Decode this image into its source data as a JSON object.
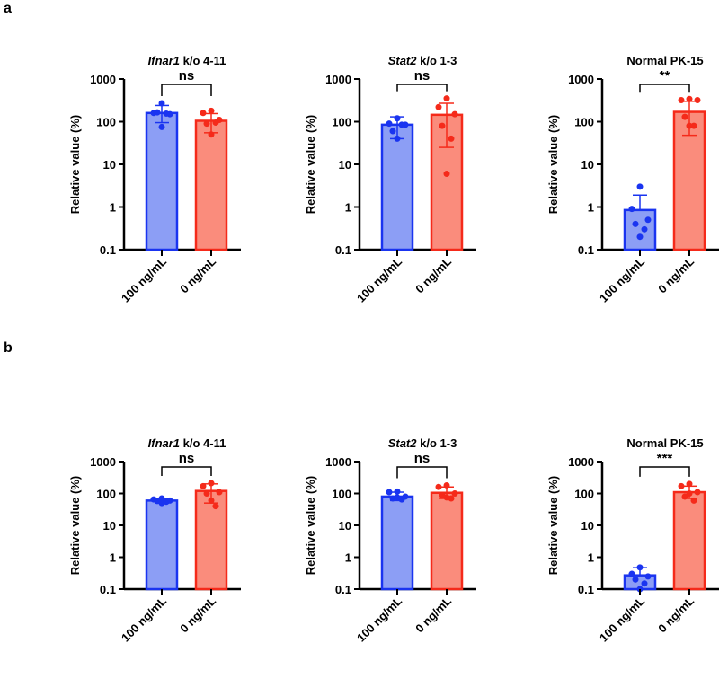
{
  "chart_data": [
    {
      "row": "a",
      "type": "bar",
      "scale": "log",
      "title_italic": "Ifnar1",
      "title_rest": " k/o 4-11",
      "ylabel": "Relative value (%)",
      "yticks": [
        "0.1",
        "1",
        "10",
        "100",
        "1000"
      ],
      "ylim": [
        0.1,
        1000
      ],
      "categories": [
        "100 ng/mL",
        "0 ng/mL"
      ],
      "significance": "ns",
      "series": [
        {
          "name": "100 ng/mL",
          "mean": 160,
          "err": [
            95,
            240
          ],
          "points": [
            270,
            160,
            150,
            165,
            155,
            75
          ]
        },
        {
          "name": "0 ng/mL",
          "mean": 105,
          "err": [
            55,
            155
          ],
          "points": [
            180,
            160,
            110,
            90,
            95,
            50
          ]
        }
      ]
    },
    {
      "row": "a",
      "type": "bar",
      "scale": "log",
      "title_italic": "Stat2",
      "title_rest": " k/o 1-3",
      "ylabel": "Relative value (%)",
      "yticks": [
        "0.1",
        "1",
        "10",
        "100",
        "1000"
      ],
      "ylim": [
        0.1,
        1000
      ],
      "categories": [
        "100 ng/mL",
        "0 ng/mL"
      ],
      "significance": "ns",
      "series": [
        {
          "name": "100 ng/mL",
          "mean": 85,
          "err": [
            40,
            130
          ],
          "points": [
            120,
            90,
            85,
            60,
            85,
            40
          ]
        },
        {
          "name": "0 ng/mL",
          "mean": 145,
          "err": [
            25,
            270
          ],
          "points": [
            350,
            220,
            150,
            80,
            40,
            6
          ]
        }
      ]
    },
    {
      "row": "a",
      "type": "bar",
      "scale": "log",
      "title_italic": "",
      "title_rest": "Normal PK-15",
      "ylabel": "Relative value (%)",
      "yticks": [
        "0.1",
        "1",
        "10",
        "100",
        "1000"
      ],
      "ylim": [
        0.1,
        1000
      ],
      "categories": [
        "100 ng/mL",
        "0 ng/mL"
      ],
      "significance": "**",
      "series": [
        {
          "name": "100 ng/mL",
          "mean": 0.85,
          "err": [
            0.85,
            1.9
          ],
          "points": [
            3,
            0.9,
            0.5,
            0.4,
            0.3,
            0.2
          ]
        },
        {
          "name": "0 ng/mL",
          "mean": 170,
          "err": [
            48,
            300
          ],
          "points": [
            340,
            320,
            320,
            130,
            80,
            80
          ]
        }
      ]
    },
    {
      "row": "b",
      "type": "bar",
      "scale": "log",
      "title_italic": "Ifnar1",
      "title_rest": " k/o 4-11",
      "ylabel": "Relative value (%)",
      "yticks": [
        "0.1",
        "1",
        "10",
        "100",
        "1000"
      ],
      "ylim": [
        0.1,
        1000
      ],
      "categories": [
        "100 ng/mL",
        "0 ng/mL"
      ],
      "significance": "ns",
      "series": [
        {
          "name": "100 ng/mL",
          "mean": 60,
          "err": [
            50,
            70
          ],
          "points": [
            70,
            65,
            60,
            58,
            55,
            50
          ]
        },
        {
          "name": "0 ng/mL",
          "mean": 120,
          "err": [
            50,
            200
          ],
          "points": [
            210,
            170,
            110,
            100,
            40,
            60
          ]
        }
      ]
    },
    {
      "row": "b",
      "type": "bar",
      "scale": "log",
      "title_italic": "Stat2",
      "title_rest": " k/o 1-3",
      "ylabel": "Relative value (%)",
      "yticks": [
        "0.1",
        "1",
        "10",
        "100",
        "1000"
      ],
      "ylim": [
        0.1,
        1000
      ],
      "categories": [
        "100 ng/mL",
        "0 ng/mL"
      ],
      "significance": "ns",
      "series": [
        {
          "name": "100 ng/mL",
          "mean": 80,
          "err": [
            60,
            110
          ],
          "points": [
            115,
            110,
            80,
            70,
            65,
            75
          ]
        },
        {
          "name": "0 ng/mL",
          "mean": 105,
          "err": [
            70,
            160
          ],
          "points": [
            180,
            160,
            100,
            90,
            70,
            75
          ]
        }
      ]
    },
    {
      "row": "b",
      "type": "bar",
      "scale": "log",
      "title_italic": "",
      "title_rest": "Normal PK-15",
      "ylabel": "Relative value (%)",
      "yticks": [
        "0.1",
        "1",
        "10",
        "100",
        "1000"
      ],
      "ylim": [
        0.1,
        1000
      ],
      "categories": [
        "100 ng/mL",
        "0 ng/mL"
      ],
      "significance": "***",
      "series": [
        {
          "name": "100 ng/mL",
          "mean": 0.27,
          "err": [
            0.27,
            0.47
          ],
          "points": [
            0.48,
            0.3,
            0.25,
            0.2,
            0.15,
            0.1
          ]
        },
        {
          "name": "0 ng/mL",
          "mean": 110,
          "err": [
            70,
            170
          ],
          "points": [
            200,
            170,
            110,
            80,
            60,
            100
          ]
        }
      ]
    }
  ],
  "panel_labels": [
    "a",
    "b"
  ],
  "colors": {
    "blue_fill": "#8C9EF5",
    "blue_stroke": "#1A34F0",
    "red_fill": "#FA8C7C",
    "red_stroke": "#F52A1A"
  }
}
